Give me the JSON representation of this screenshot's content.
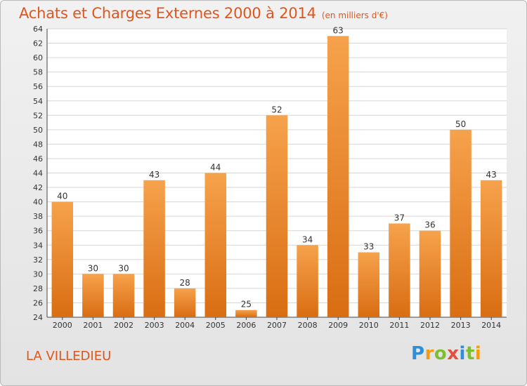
{
  "header": {
    "title": "Achats et Charges Externes 2000 à 2014",
    "subtitle": "(en milliers d'€)"
  },
  "footer": {
    "place": "LA VILLEDIEU",
    "logo": "Proxiti"
  },
  "colors": {
    "title": "#e0551c",
    "bar_top": "#f6a24c",
    "bar_bottom": "#d96d12",
    "grid": "#d6d6d6"
  },
  "chart_data": {
    "type": "bar",
    "categories": [
      "2000",
      "2001",
      "2002",
      "2003",
      "2004",
      "2005",
      "2006",
      "2007",
      "2008",
      "2009",
      "2010",
      "2011",
      "2012",
      "2013",
      "2014"
    ],
    "values": [
      40,
      30,
      30,
      43,
      28,
      44,
      25,
      52,
      34,
      63,
      33,
      37,
      36,
      50,
      43
    ],
    "ylim": [
      24,
      64
    ],
    "yticks": [
      24,
      26,
      28,
      30,
      32,
      34,
      36,
      38,
      40,
      42,
      44,
      46,
      48,
      50,
      52,
      54,
      56,
      58,
      60,
      62,
      64
    ],
    "grid": true,
    "data_labels": true
  }
}
